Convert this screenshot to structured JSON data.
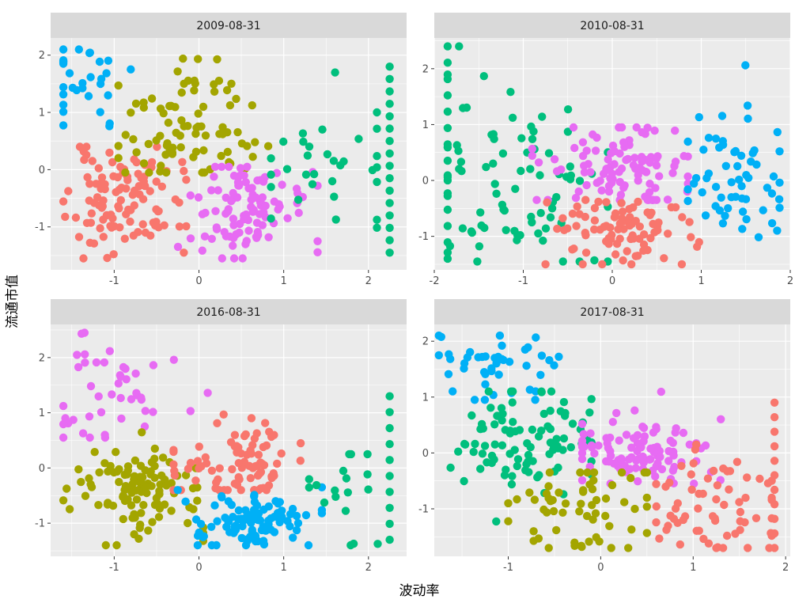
{
  "chart_data": {
    "type": "scatter",
    "xlabel": "波动率",
    "ylabel": "流通市值",
    "colors": {
      "red": "#F8766D",
      "olive": "#A3A500",
      "green": "#00BF7D",
      "blue": "#00B0F6",
      "pink": "#E76BF3"
    },
    "panels": [
      {
        "title": "2009-08-31",
        "xlim": [
          -1.75,
          2.45
        ],
        "ylim": [
          -1.75,
          2.3
        ],
        "xticks": [
          -1,
          0,
          1,
          2
        ],
        "yticks": [
          -1,
          0,
          1,
          2
        ],
        "clusters": [
          {
            "color": "red",
            "cx": -0.9,
            "cy": -0.55,
            "sx": 0.33,
            "sy": 0.45,
            "n": 110,
            "xmin": -1.6,
            "xmax": -0.15,
            "ymin": -1.55,
            "ymax": 0.4,
            "seed": 11
          },
          {
            "color": "olive",
            "cx": -0.15,
            "cy": 0.75,
            "sx": 0.42,
            "sy": 0.5,
            "n": 85,
            "xmin": -0.95,
            "xmax": 1.25,
            "ymin": -0.05,
            "ymax": 2.1,
            "seed": 12
          },
          {
            "color": "pink",
            "cx": 0.45,
            "cy": -0.65,
            "sx": 0.38,
            "sy": 0.45,
            "n": 100,
            "xmin": -0.25,
            "xmax": 1.4,
            "ymin": -1.55,
            "ymax": 0.05,
            "seed": 13
          },
          {
            "color": "blue",
            "cx": -1.35,
            "cy": 1.45,
            "sx": 0.25,
            "sy": 0.45,
            "n": 30,
            "xmin": -1.6,
            "xmax": -0.4,
            "ymin": 0.65,
            "ymax": 2.1,
            "seed": 14
          },
          {
            "color": "green",
            "cx": 1.5,
            "cy": 0.1,
            "sx": 0.5,
            "sy": 0.75,
            "n": 32,
            "xmin": 0.85,
            "xmax": 2.1,
            "ymin": -1.45,
            "ymax": 2.1,
            "seed": 15
          }
        ],
        "columns": [
          {
            "color": "green",
            "x": 2.25,
            "ymin": -1.45,
            "ymax": 1.8,
            "n": 16
          }
        ]
      },
      {
        "title": "2010-08-31",
        "xlim": [
          -2.0,
          2.0
        ],
        "ylim": [
          -1.6,
          2.55
        ],
        "xticks": [
          -2,
          -1,
          0,
          1,
          2
        ],
        "yticks": [
          -1,
          0,
          1,
          2
        ],
        "clusters": [
          {
            "color": "green",
            "cx": -1.15,
            "cy": 0.0,
            "sx": 0.55,
            "sy": 1.0,
            "n": 80,
            "xmin": -1.85,
            "xmax": -0.05,
            "ymin": -1.45,
            "ymax": 2.4,
            "seed": 21
          },
          {
            "color": "pink",
            "cx": 0.05,
            "cy": 0.3,
            "sx": 0.42,
            "sy": 0.38,
            "n": 100,
            "xmin": -0.9,
            "xmax": 0.85,
            "ymin": -0.35,
            "ymax": 0.95,
            "seed": 22
          },
          {
            "color": "red",
            "cx": 0.05,
            "cy": -0.9,
            "sx": 0.42,
            "sy": 0.35,
            "n": 85,
            "xmin": -0.75,
            "xmax": 1.0,
            "ymin": -1.5,
            "ymax": -0.35,
            "seed": 23
          },
          {
            "color": "blue",
            "cx": 1.35,
            "cy": 0.0,
            "sx": 0.35,
            "sy": 0.65,
            "n": 60,
            "xmin": 0.85,
            "xmax": 1.88,
            "ymin": -1.45,
            "ymax": 2.1,
            "seed": 24
          }
        ],
        "columns": [
          {
            "color": "green",
            "x": -1.85,
            "ymin": -1.4,
            "ymax": 2.4,
            "n": 14
          }
        ]
      },
      {
        "title": "2016-08-31",
        "xlim": [
          -1.75,
          2.45
        ],
        "ylim": [
          -1.6,
          2.6
        ],
        "xticks": [
          -1,
          0,
          1,
          2
        ],
        "yticks": [
          -1,
          0,
          1,
          2
        ],
        "clusters": [
          {
            "color": "pink",
            "cx": -1.05,
            "cy": 1.4,
            "sx": 0.4,
            "sy": 0.55,
            "n": 45,
            "xmin": -1.6,
            "xmax": 0.15,
            "ymin": 0.55,
            "ymax": 2.45,
            "seed": 31
          },
          {
            "color": "olive",
            "cx": -0.7,
            "cy": -0.35,
            "sx": 0.38,
            "sy": 0.42,
            "n": 110,
            "xmin": -1.6,
            "xmax": 0.05,
            "ymin": -1.4,
            "ymax": 0.65,
            "seed": 32
          },
          {
            "color": "red",
            "cx": 0.45,
            "cy": 0.05,
            "sx": 0.38,
            "sy": 0.35,
            "n": 85,
            "xmin": -0.3,
            "xmax": 1.2,
            "ymin": -0.4,
            "ymax": 1.65,
            "seed": 33
          },
          {
            "color": "blue",
            "cx": 0.6,
            "cy": -0.95,
            "sx": 0.38,
            "sy": 0.3,
            "n": 100,
            "xmin": -0.25,
            "xmax": 1.45,
            "ymin": -1.4,
            "ymax": -0.35,
            "seed": 34
          },
          {
            "color": "green",
            "cx": 1.7,
            "cy": -0.5,
            "sx": 0.3,
            "sy": 0.5,
            "n": 18,
            "xmin": 1.3,
            "xmax": 2.25,
            "ymin": -1.4,
            "ymax": 0.25,
            "seed": 35
          }
        ],
        "columns": [
          {
            "color": "green",
            "x": 2.25,
            "ymin": -1.3,
            "ymax": 1.3,
            "n": 10
          }
        ]
      },
      {
        "title": "2017-08-31",
        "xlim": [
          -1.8,
          2.05
        ],
        "ylim": [
          -1.85,
          2.3
        ],
        "xticks": [
          -1,
          0,
          1,
          2
        ],
        "yticks": [
          -1,
          0,
          1,
          2
        ],
        "clusters": [
          {
            "color": "blue",
            "cx": -1.05,
            "cy": 1.55,
            "sx": 0.35,
            "sy": 0.35,
            "n": 45,
            "xmin": -1.75,
            "xmax": 0.05,
            "ymin": 0.95,
            "ymax": 2.1,
            "seed": 41
          },
          {
            "color": "green",
            "cx": -0.85,
            "cy": 0.25,
            "sx": 0.42,
            "sy": 0.45,
            "n": 95,
            "xmin": -1.75,
            "xmax": -0.1,
            "ymin": -1.7,
            "ymax": 1.1,
            "seed": 42
          },
          {
            "color": "pink",
            "cx": 0.4,
            "cy": -0.05,
            "sx": 0.4,
            "sy": 0.35,
            "n": 100,
            "xmin": -0.2,
            "xmax": 1.4,
            "ymin": -0.55,
            "ymax": 1.3,
            "seed": 43
          },
          {
            "color": "olive",
            "cx": -0.25,
            "cy": -1.0,
            "sx": 0.5,
            "sy": 0.5,
            "n": 60,
            "xmin": -1.0,
            "xmax": 0.5,
            "ymin": -1.7,
            "ymax": -0.35,
            "seed": 44
          },
          {
            "color": "red",
            "cx": 1.25,
            "cy": -0.95,
            "sx": 0.4,
            "sy": 0.45,
            "n": 65,
            "xmin": 0.6,
            "xmax": 1.85,
            "ymin": -1.7,
            "ymax": 0.15,
            "seed": 45
          }
        ],
        "columns": [
          {
            "color": "red",
            "x": 1.88,
            "ymin": -1.7,
            "ymax": 0.9,
            "n": 11
          }
        ]
      }
    ]
  }
}
